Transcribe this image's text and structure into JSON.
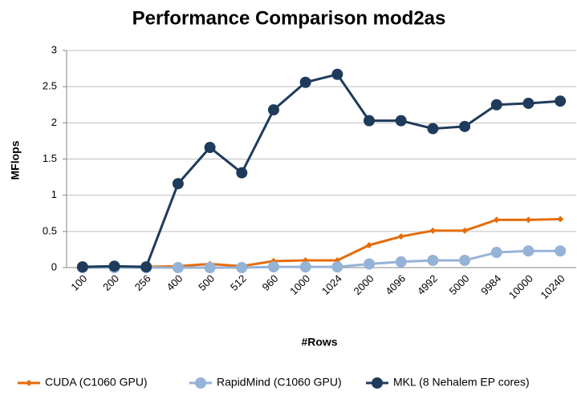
{
  "chart_data": {
    "type": "line",
    "title": "Performance Comparison mod2as",
    "x_label": "#Rows",
    "y_label": "MFlops",
    "categories": [
      "100",
      "200",
      "256",
      "400",
      "500",
      "512",
      "960",
      "1000",
      "1024",
      "2000",
      "4096",
      "4992",
      "5000",
      "9984",
      "10000",
      "10240"
    ],
    "series": [
      {
        "name": "CUDA (C1060 GPU)",
        "color": "#e46c0a",
        "marker": "diamond",
        "values": [
          0,
          0.01,
          0.01,
          0.02,
          0.05,
          0.02,
          0.09,
          0.1,
          0.1,
          0.31,
          0.43,
          0.51,
          0.51,
          0.66,
          0.66,
          0.67
        ]
      },
      {
        "name": "RapidMind (C1060 GPU)",
        "color": "#95b3d7",
        "marker": "circle",
        "values": [
          0,
          0,
          0,
          0,
          0,
          0,
          0.01,
          0.01,
          0.01,
          0.05,
          0.08,
          0.1,
          0.1,
          0.21,
          0.23,
          0.23
        ]
      },
      {
        "name": "MKL (8 Nehalem EP cores)",
        "color": "#1f3b5c",
        "marker": "circle",
        "values": [
          0.01,
          0.02,
          0.01,
          1.16,
          1.66,
          1.31,
          2.18,
          2.56,
          2.67,
          2.03,
          2.03,
          1.92,
          1.95,
          2.25,
          2.27,
          2.3
        ]
      }
    ],
    "ylim": [
      0,
      3
    ],
    "yticks": [
      0,
      0.5,
      1,
      1.5,
      2,
      2.5,
      3
    ],
    "grid": true,
    "legend": "bottom"
  }
}
